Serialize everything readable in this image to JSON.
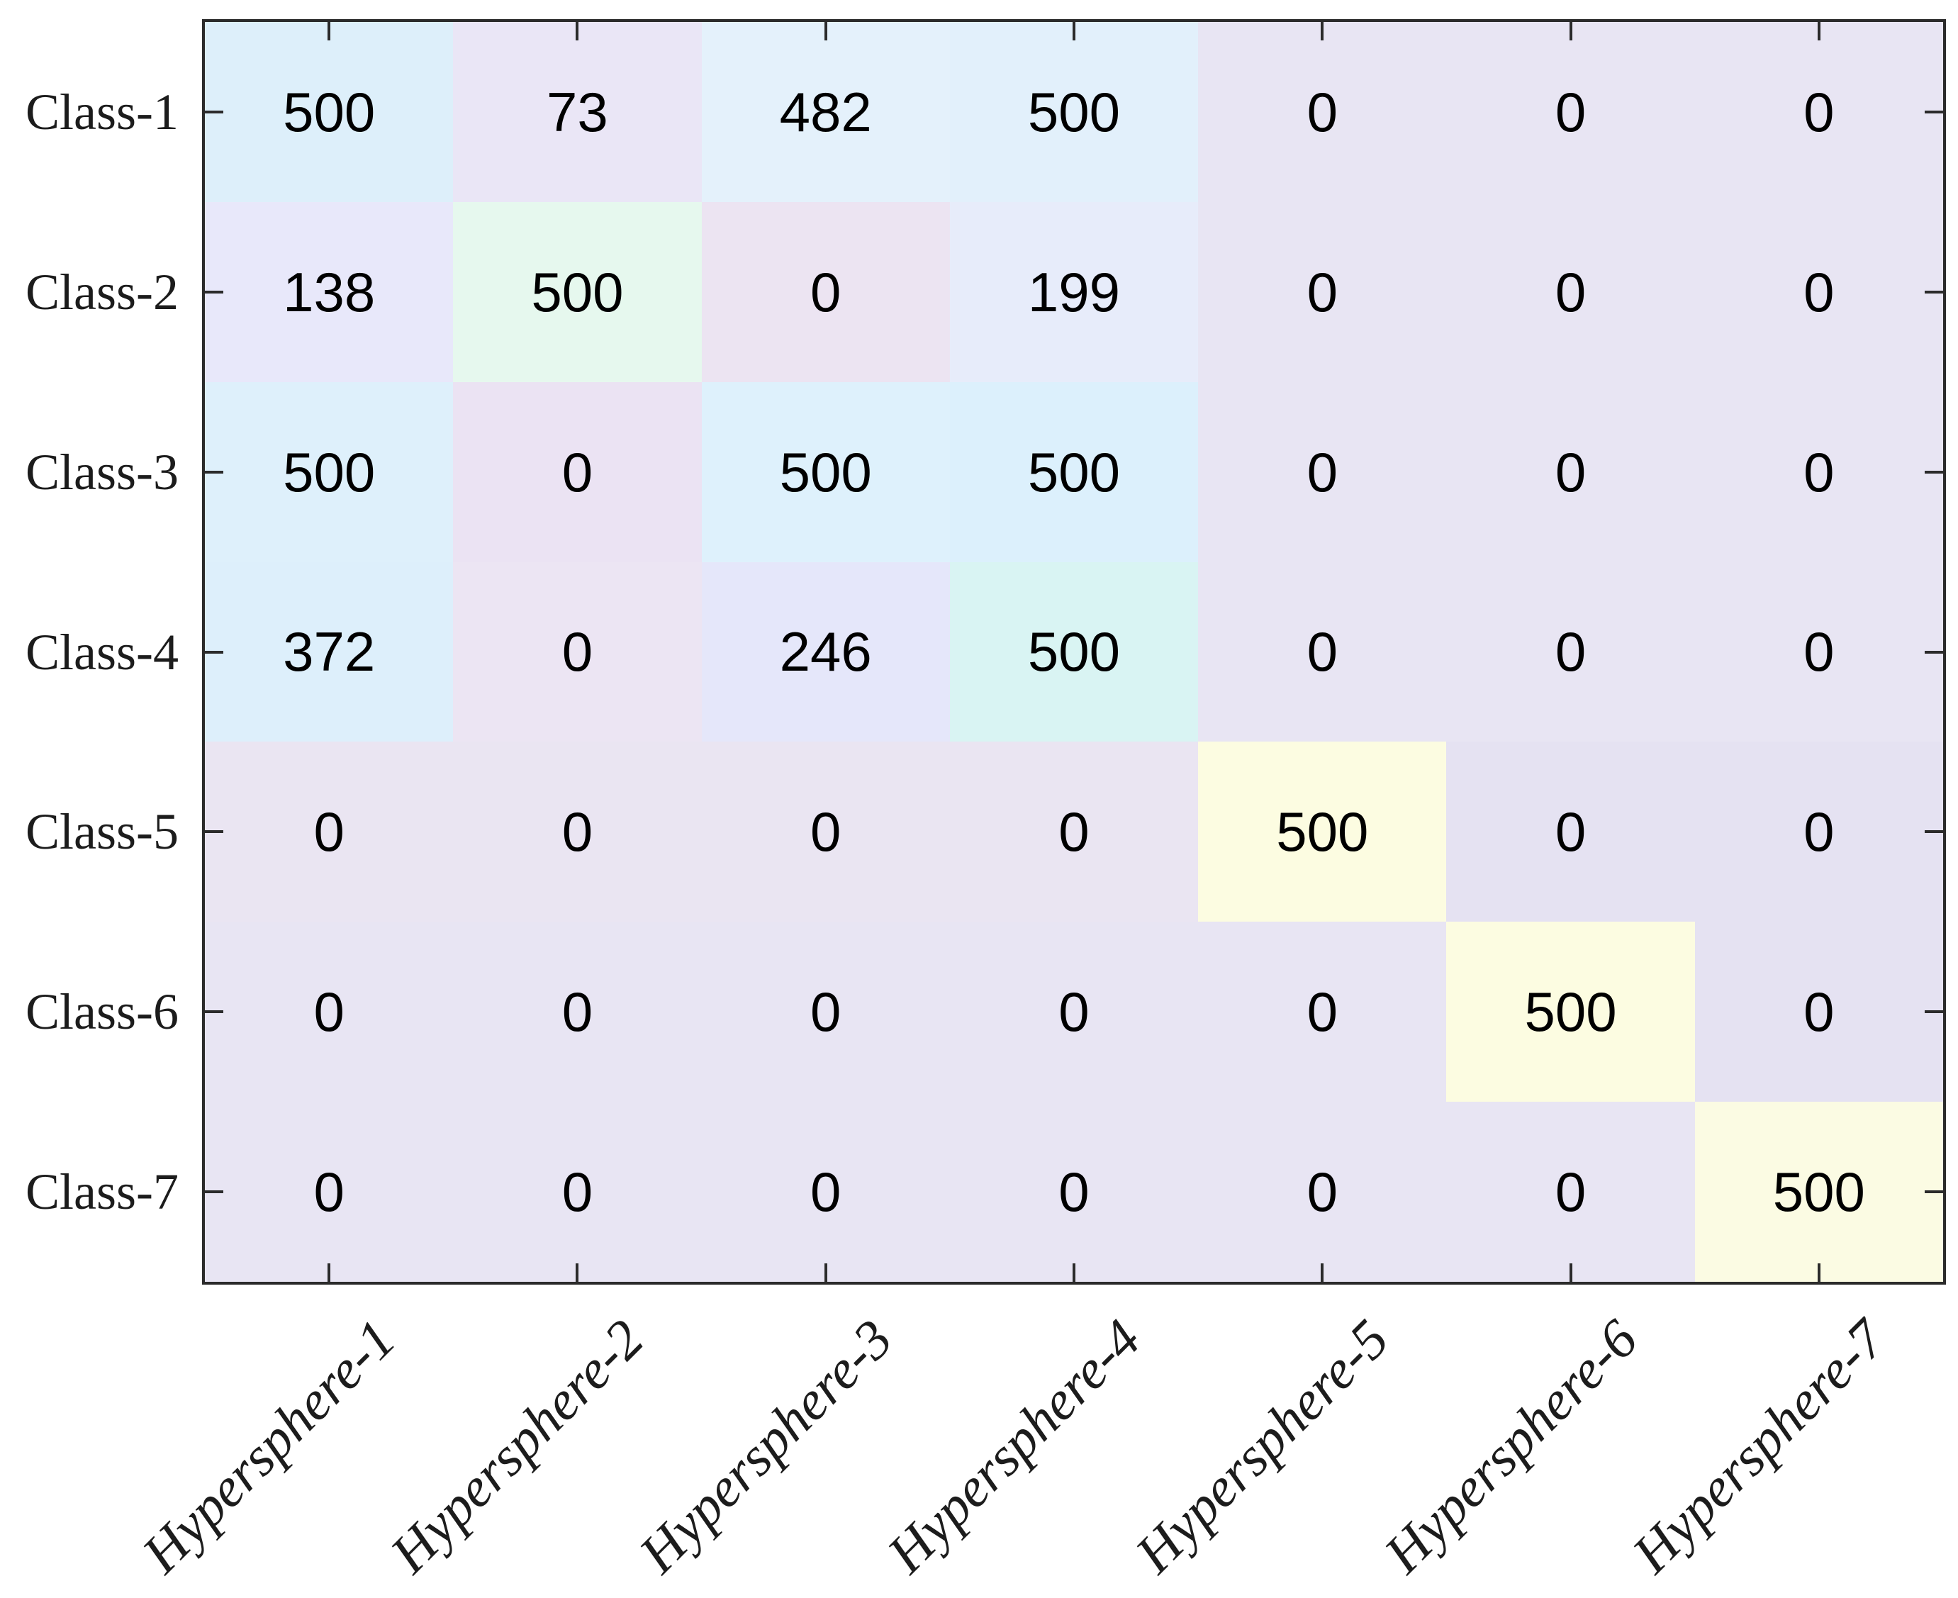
{
  "figure": {
    "background": "#ffffff",
    "axis_color": "#2b2b2b",
    "label_text_color": "#1c1c1c",
    "value_text_color": "#000000"
  },
  "chart_data": {
    "type": "heatmap",
    "title": "",
    "xlabel": "",
    "ylabel": "",
    "row_labels": [
      "Class-1",
      "Class-2",
      "Class-3",
      "Class-4",
      "Class-5",
      "Class-6",
      "Class-7"
    ],
    "col_labels": [
      "Hypersphere-1",
      "Hypersphere-2",
      "Hypersphere-3",
      "Hypersphere-4",
      "Hypersphere-5",
      "Hypersphere-6",
      "Hypersphere-7"
    ],
    "values": [
      [
        500,
        73,
        482,
        500,
        0,
        0,
        0
      ],
      [
        138,
        500,
        0,
        199,
        0,
        0,
        0
      ],
      [
        500,
        0,
        500,
        500,
        0,
        0,
        0
      ],
      [
        372,
        0,
        246,
        500,
        0,
        0,
        0
      ],
      [
        0,
        0,
        0,
        0,
        500,
        0,
        0
      ],
      [
        0,
        0,
        0,
        0,
        0,
        500,
        0
      ],
      [
        0,
        0,
        0,
        0,
        0,
        0,
        500
      ]
    ],
    "cell_colors": [
      [
        "#ddeffa",
        "#eae6f6",
        "#e4f1fb",
        "#e2f0fb",
        "#e8e5f3",
        "#e8e5f3",
        "#e8e5f3"
      ],
      [
        "#e8e8fa",
        "#e6f8ee",
        "#ece4f2",
        "#e7ecfa",
        "#e8e5f3",
        "#e8e5f3",
        "#e8e5f3"
      ],
      [
        "#def0fb",
        "#ebe3f3",
        "#def1fc",
        "#dcf0fc",
        "#e8e5f3",
        "#e8e5f3",
        "#e8e5f3"
      ],
      [
        "#ddeffb",
        "#ece5f3",
        "#e5e7fa",
        "#d9f4f3",
        "#e8e5f3",
        "#e8e5f3",
        "#e8e5f3"
      ],
      [
        "#eae5f2",
        "#eae5f2",
        "#eae5f2",
        "#eae5f2",
        "#fcfce1",
        "#e5e2f2",
        "#e5e2f2"
      ],
      [
        "#e8e5f3",
        "#e8e5f3",
        "#e8e5f3",
        "#e8e5f3",
        "#e8e5f3",
        "#fcfce1",
        "#e5e2f2"
      ],
      [
        "#e8e5f3",
        "#e8e5f3",
        "#e8e5f3",
        "#e8e5f3",
        "#e8e5f3",
        "#e8e5f3",
        "#fbfbe3"
      ]
    ],
    "grid": "off",
    "legend": "none",
    "tick_direction": "in",
    "col_label_rotation_deg": -45
  }
}
